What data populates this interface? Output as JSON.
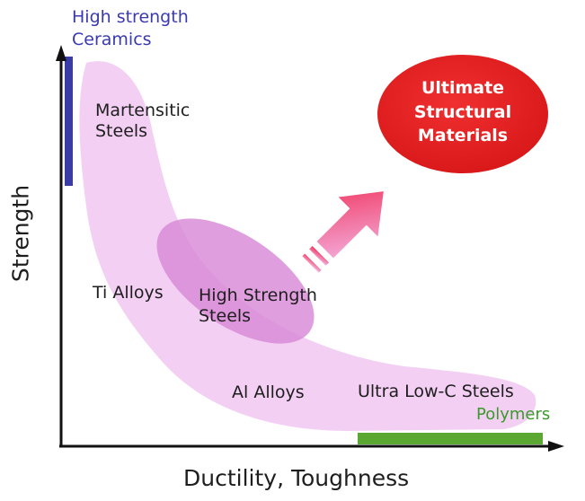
{
  "title": "",
  "axes": {
    "x_label": "Ductility, Toughness",
    "y_label": "Strength"
  },
  "regions": {
    "ceramics": {
      "line1": "High strength",
      "line2": "Ceramics",
      "color": "#3b3ba8"
    },
    "martensitic": {
      "line1": "Martensitic",
      "line2": "Steels"
    },
    "ti_alloys": {
      "label": "Ti Alloys"
    },
    "high_strength_steels": {
      "line1": "High Strength",
      "line2": "Steels",
      "color": "#c77ac9"
    },
    "al_alloys": {
      "label": "Al Alloys"
    },
    "ultra_low_c": {
      "label": "Ultra Low-C Steels"
    },
    "polymers": {
      "label": "Polymers",
      "color": "#5aa832"
    }
  },
  "target": {
    "line1": "Ultimate",
    "line2": "Structural",
    "line3": "Materials",
    "color": "#e02020"
  },
  "band_color": "#f0c8f0",
  "arrow": {
    "icon": "diagonal-up-right-arrow",
    "from_color": "#f3b6e6",
    "to_color": "#f0345c"
  }
}
